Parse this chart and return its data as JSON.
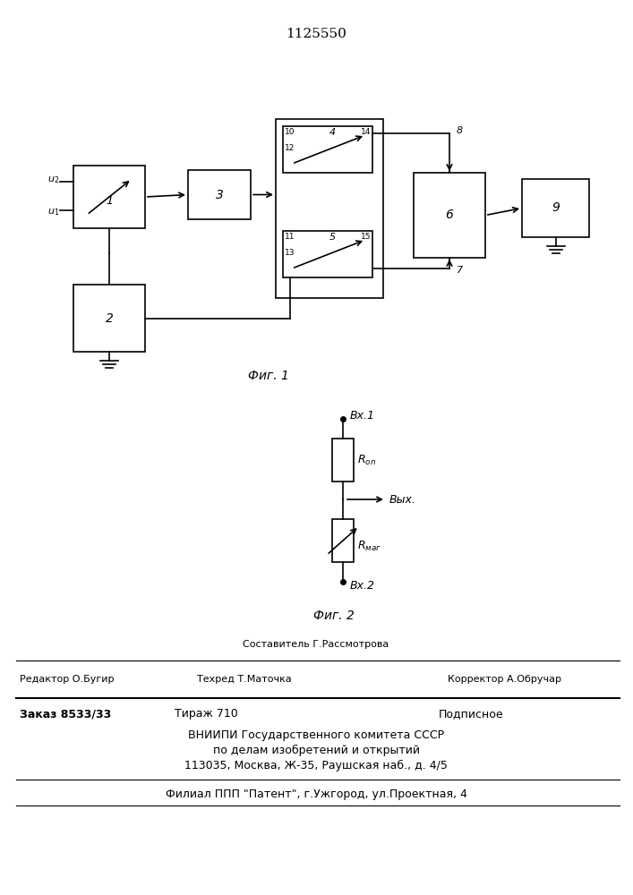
{
  "title": "1125550",
  "fig1_label": "Фиг. 1",
  "fig2_label": "Фиг. 2",
  "background_color": "#ffffff",
  "line_color": "#000000"
}
